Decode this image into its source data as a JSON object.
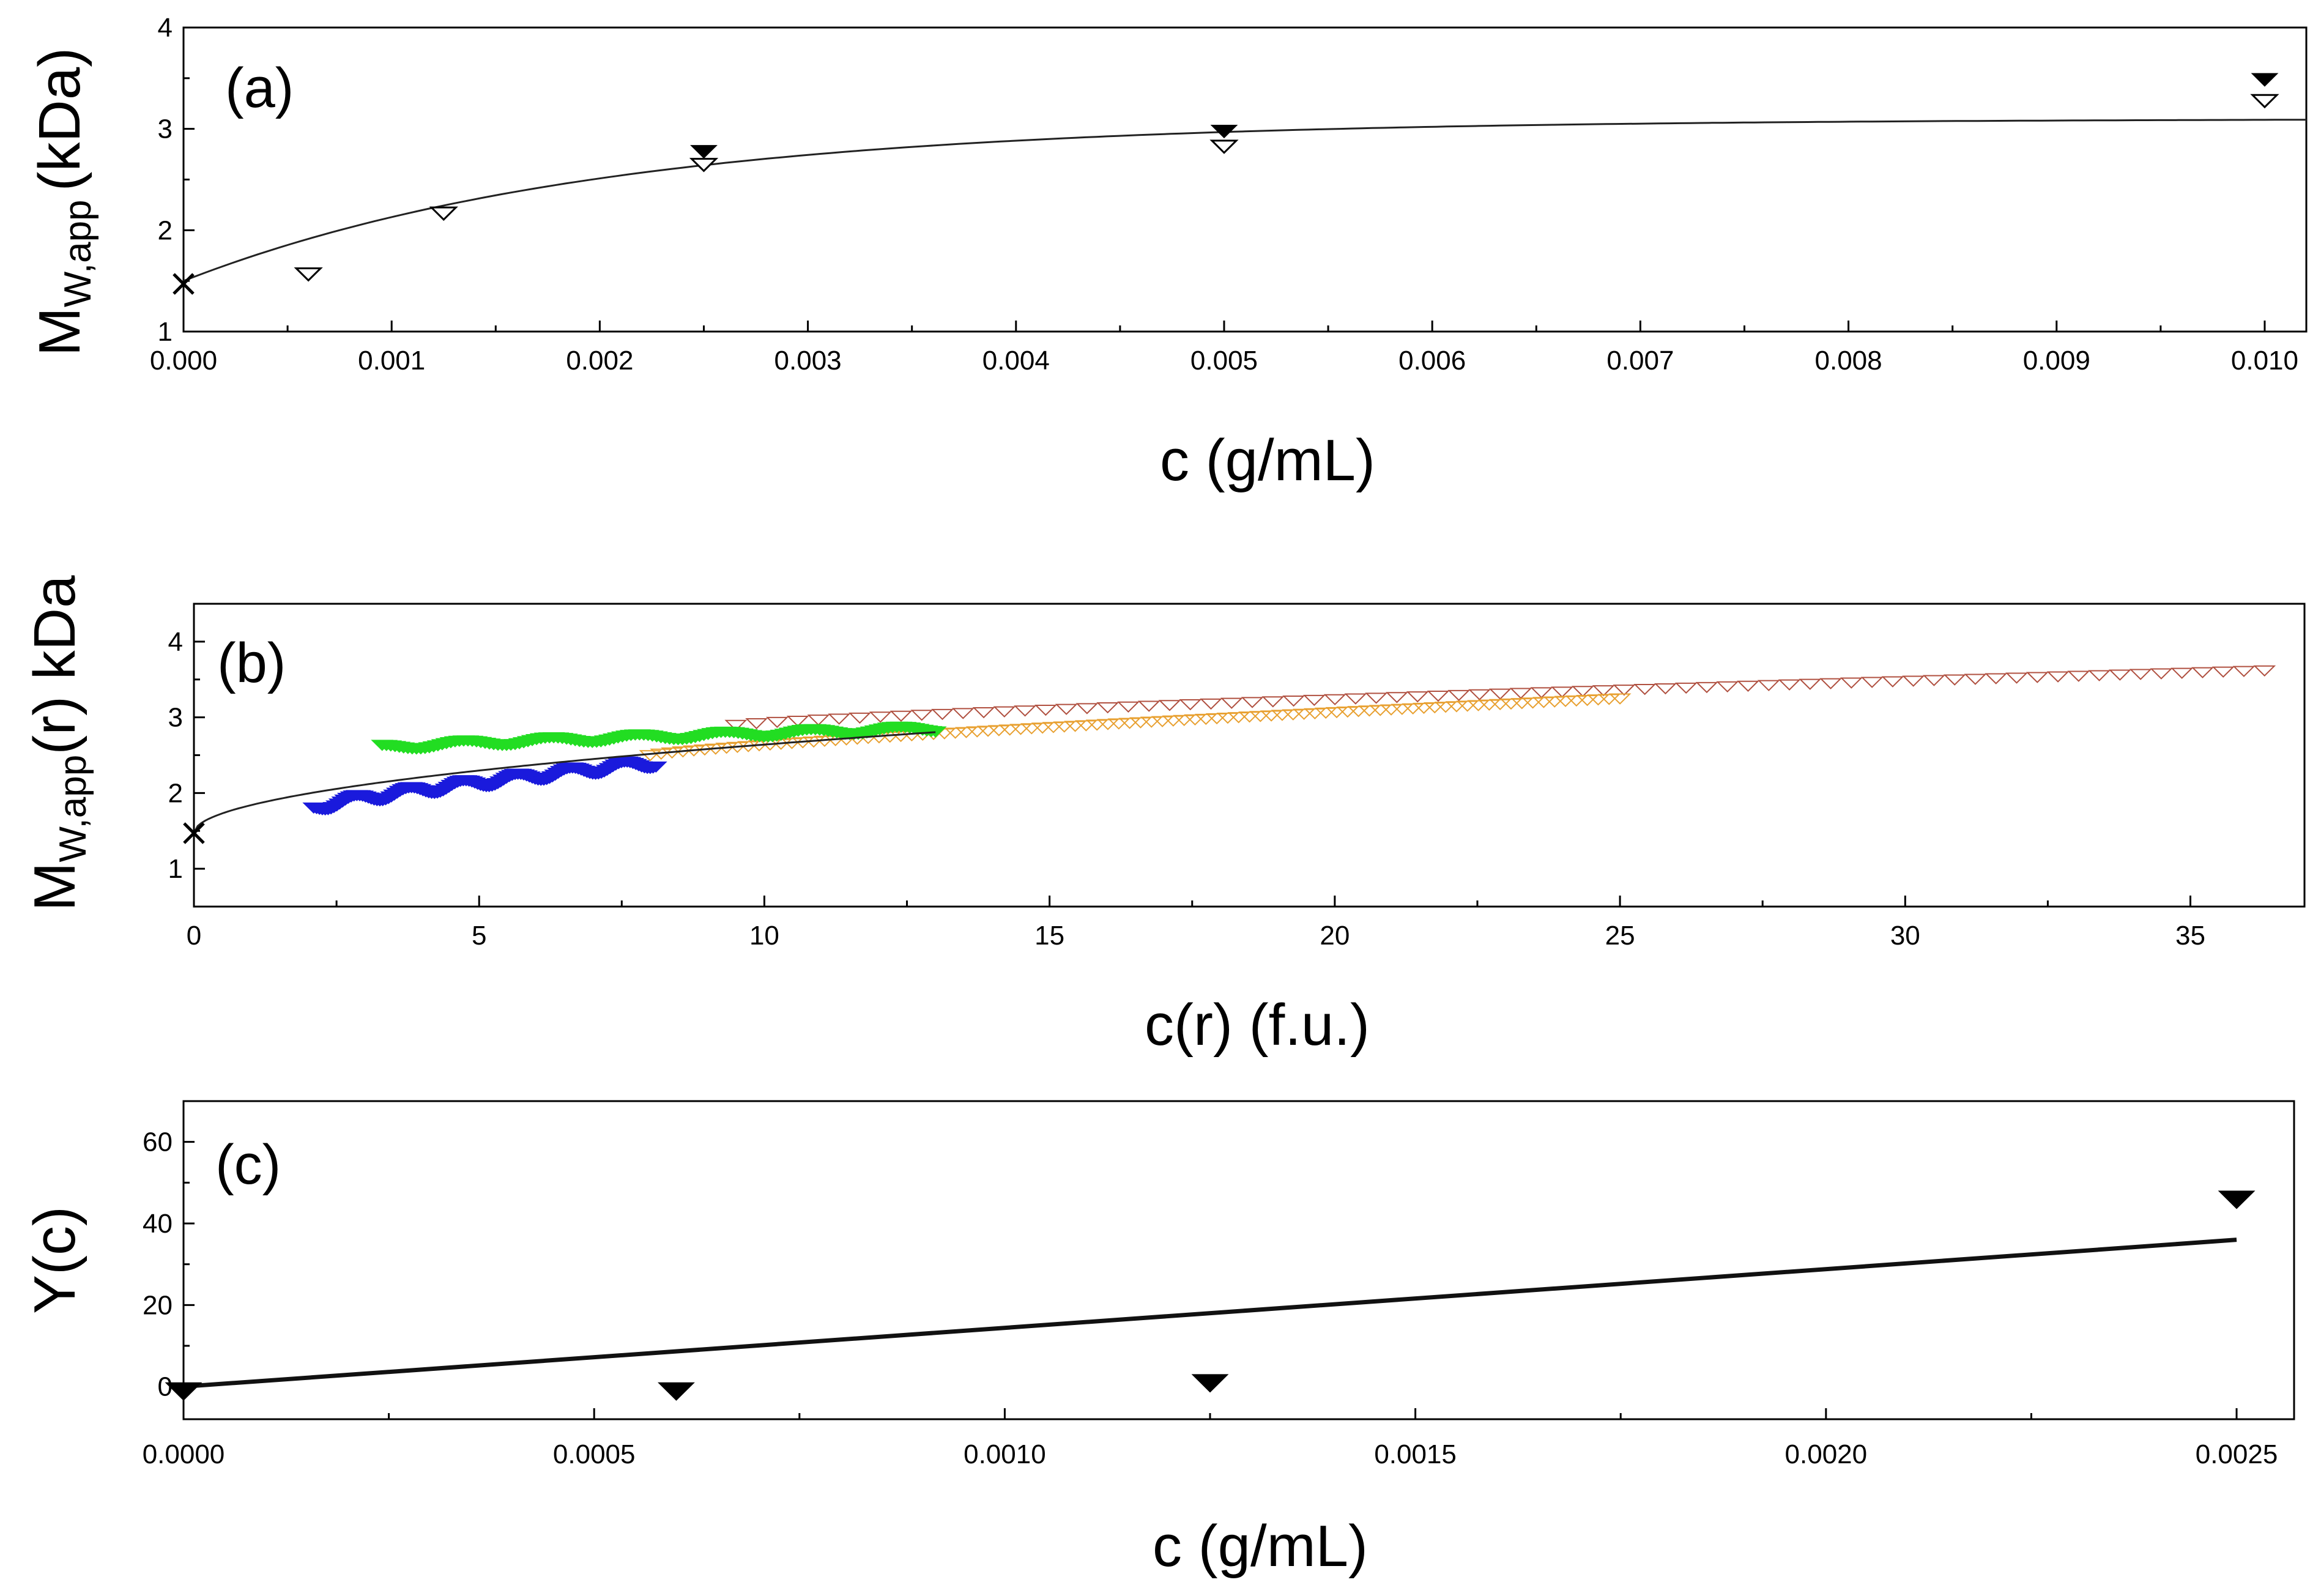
{
  "chart_data": [
    {
      "panel_label": "(a)",
      "type": "scatter",
      "xlabel": "c (g/mL)",
      "ylabel_main": "M",
      "ylabel_sub": "W,app",
      "ylabel_unit": "(kDa)",
      "xlim": [
        0,
        0.0102
      ],
      "ylim": [
        1,
        4
      ],
      "xticks": [
        "0.000",
        "0.001",
        "0.002",
        "0.003",
        "0.004",
        "0.005",
        "0.006",
        "0.007",
        "0.008",
        "0.009",
        "0.010"
      ],
      "xtick_values": [
        0,
        0.001,
        0.002,
        0.003,
        0.004,
        0.005,
        0.006,
        0.007,
        0.008,
        0.009,
        0.01
      ],
      "yticks": [
        "1",
        "2",
        "3",
        "4"
      ],
      "ytick_values": [
        1,
        2,
        3,
        4
      ],
      "series": [
        {
          "name": "filled",
          "marker": "filled-down-triangle",
          "color": "#000000",
          "x": [
            0.0025,
            0.005,
            0.01
          ],
          "y": [
            2.78,
            2.98,
            3.49
          ]
        },
        {
          "name": "open",
          "marker": "open-down-triangle",
          "color": "#000000",
          "x": [
            0.0006,
            0.00125,
            0.0025,
            0.005,
            0.01
          ],
          "y": [
            1.57,
            2.17,
            2.65,
            2.83,
            3.28
          ]
        },
        {
          "name": "M1",
          "marker": "x",
          "color": "#000000",
          "x": [
            0
          ],
          "y": [
            1.47
          ]
        }
      ],
      "fit": {
        "type": "exp-saturation",
        "y0": 1.5,
        "ymax": 3.1,
        "k": 500
      }
    },
    {
      "panel_label": "(b)",
      "type": "scatter",
      "xlabel": "c(r) (f.u.)",
      "ylabel_main": "M",
      "ylabel_sub": "W,app",
      "ylabel_unit": "(r) kDa",
      "xlim": [
        0,
        37
      ],
      "ylim": [
        0.5,
        4.5
      ],
      "xticks": [
        "0",
        "5",
        "10",
        "15",
        "20",
        "25",
        "30",
        "35"
      ],
      "xtick_values": [
        0,
        5,
        10,
        15,
        20,
        25,
        30,
        35
      ],
      "yticks": [
        "1",
        "2",
        "3",
        "4"
      ],
      "ytick_values": [
        1,
        2,
        3,
        4
      ],
      "series": [
        {
          "name": "blue",
          "color": "#1a1adc",
          "x_range": [
            2.1,
            8.1
          ],
          "y_range": [
            1.8,
            2.4
          ],
          "wiggle": 0.06,
          "count": 120
        },
        {
          "name": "green",
          "color": "#22dd22",
          "x_range": [
            3.3,
            13.0
          ],
          "y_range": [
            2.6,
            2.85
          ],
          "wiggle": 0.04,
          "count": 130
        },
        {
          "name": "orange",
          "color": "#e8a030",
          "x_range": [
            8.0,
            25.0
          ],
          "y_range": [
            2.5,
            3.25
          ],
          "wiggle": 0.0,
          "count": 90
        },
        {
          "name": "brown",
          "color": "#b05040",
          "x_range": [
            9.5,
            36.3
          ],
          "y_range": [
            2.9,
            3.62
          ],
          "wiggle": 0.0,
          "count": 75
        }
      ],
      "point_x": 0,
      "point_y": 1.47,
      "fit": {
        "type": "power",
        "a": 1.47,
        "b": 0.37,
        "n": 0.5,
        "x_end": 13
      }
    },
    {
      "panel_label": "(c)",
      "type": "scatter",
      "xlabel": "c (g/mL)",
      "ylabel_main": "Y(c)",
      "ylabel_sub": "",
      "ylabel_unit": "",
      "xlim": [
        0,
        0.00257
      ],
      "ylim": [
        -8,
        70
      ],
      "xticks": [
        "0.0000",
        "0.0005",
        "0.0010",
        "0.0015",
        "0.0020",
        "0.0025"
      ],
      "xtick_values": [
        0,
        0.0005,
        0.001,
        0.0015,
        0.002,
        0.0025
      ],
      "yticks": [
        "0",
        "20",
        "40",
        "60"
      ],
      "ytick_values": [
        0,
        20,
        40,
        60
      ],
      "series": [
        {
          "name": "Y",
          "marker": "filled-down-triangle",
          "color": "#000000",
          "x": [
            0,
            0.0006,
            0.00125,
            0.0025
          ],
          "y": [
            -1,
            -1,
            1,
            46
          ]
        }
      ],
      "fit": {
        "type": "linear",
        "slope": 14400,
        "intercept": 0,
        "x_end": 0.0025
      }
    }
  ]
}
